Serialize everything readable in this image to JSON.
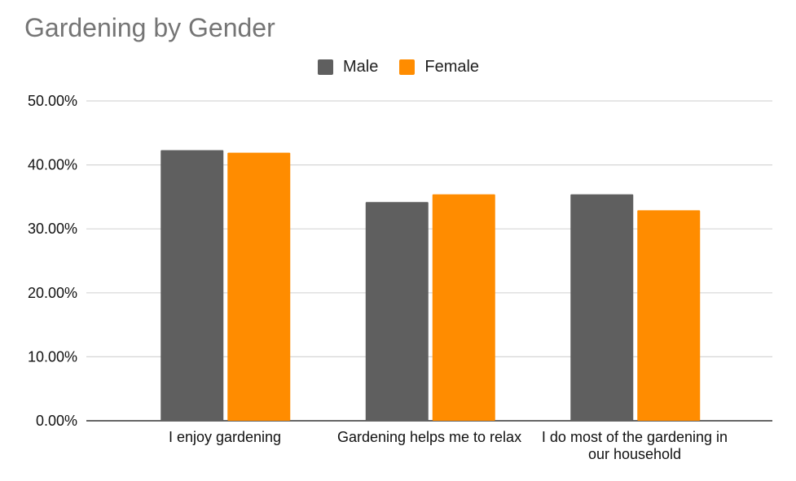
{
  "chart_data": {
    "type": "bar",
    "title": "Gardening by Gender",
    "categories": [
      "I enjoy gardening",
      "Gardening helps me to relax",
      "I do most of the gardening in our household"
    ],
    "series": [
      {
        "name": "Male",
        "color": "#5f5f5f",
        "values": [
          42.3,
          34.2,
          35.4
        ]
      },
      {
        "name": "Female",
        "color": "#ff8c00",
        "values": [
          41.9,
          35.4,
          32.9
        ]
      }
    ],
    "ylim": [
      0,
      50
    ],
    "yticks": [
      0,
      10,
      20,
      30,
      40,
      50
    ],
    "ytick_labels": [
      "0.00%",
      "10.00%",
      "20.00%",
      "30.00%",
      "40.00%",
      "50.00%"
    ],
    "grid": true,
    "legend_position": "top-center"
  }
}
